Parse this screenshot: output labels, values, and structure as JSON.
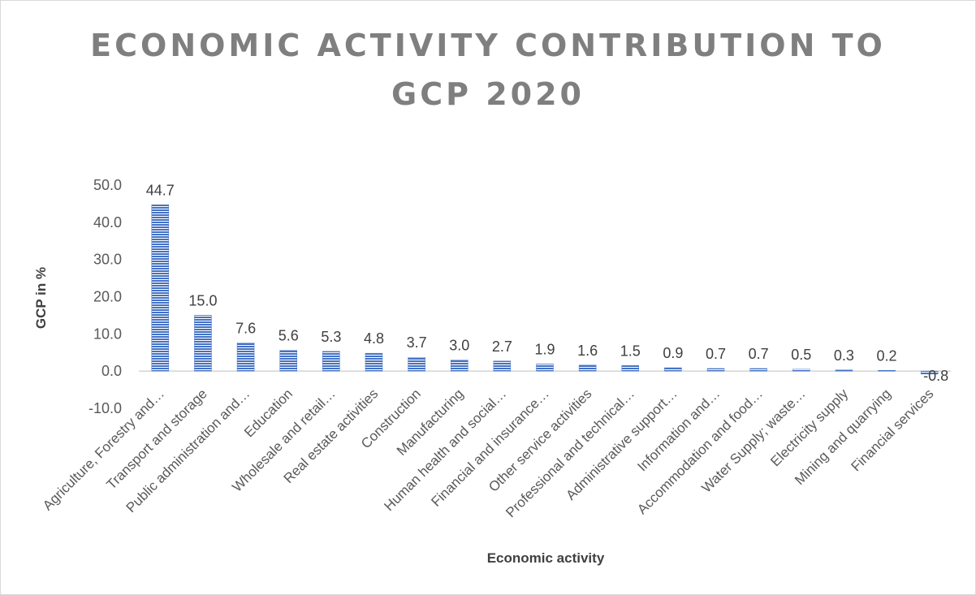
{
  "chart_data": {
    "type": "bar",
    "title_lines": [
      "ECONOMIC ACTIVITY CONTRIBUTION TO",
      "GCP 2020"
    ],
    "xlabel": "Economic activity",
    "ylabel": "GCP  in %",
    "ylim": [
      -10,
      50
    ],
    "yticks": [
      "-10.0",
      "0.0",
      "10.0",
      "20.0",
      "30.0",
      "40.0",
      "50.0"
    ],
    "gridlines": false,
    "legend": "none",
    "bar_color": "#4472c4",
    "categories": [
      "Agriculture, Forestry and…",
      "Transport and storage",
      "Public administration and…",
      "Education",
      "Wholesale and retail…",
      "Real estate activities",
      "Construction",
      "Manufacturing",
      "Human health and social…",
      "Financial and insurance…",
      "Other service activities",
      "Professional and technical…",
      "Administrative support…",
      "Information and…",
      "Accommodation and food…",
      "Water Supply; waste…",
      "Electricity supply",
      "Mining and quarrying",
      "Financial services"
    ],
    "values": [
      44.7,
      15.0,
      7.6,
      5.6,
      5.3,
      4.8,
      3.7,
      3.0,
      2.7,
      1.9,
      1.6,
      1.5,
      0.9,
      0.7,
      0.7,
      0.5,
      0.3,
      0.2,
      -0.8
    ],
    "value_labels": [
      "44.7",
      "15.0",
      "7.6",
      "5.6",
      "5.3",
      "4.8",
      "3.7",
      "3.0",
      "2.7",
      "1.9",
      "1.6",
      "1.5",
      "0.9",
      "0.7",
      "0.7",
      "0.5",
      "0.3",
      "0.2",
      "-0.8"
    ]
  }
}
